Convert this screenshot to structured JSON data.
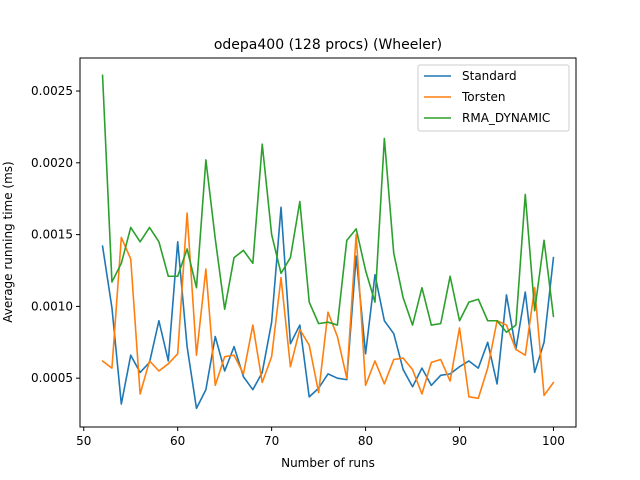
{
  "chart_data": {
    "type": "line",
    "title": "odepa400 (128 procs) (Wheeler)",
    "xlabel": "Number of runs",
    "ylabel": "Average running time (ms)",
    "xlim": [
      49.6,
      102.4
    ],
    "ylim": [
      0.00016,
      0.00273
    ],
    "xticks": [
      50,
      60,
      70,
      80,
      90,
      100
    ],
    "xtick_labels": [
      "50",
      "60",
      "70",
      "80",
      "90",
      "100"
    ],
    "yticks": [
      0.0005,
      0.001,
      0.0015,
      0.002,
      0.0025
    ],
    "ytick_labels": [
      "0.0005",
      "0.0010",
      "0.0015",
      "0.0020",
      "0.0025"
    ],
    "grid": false,
    "legend_position": "top-right",
    "x": [
      52,
      53,
      54,
      55,
      56,
      57,
      58,
      59,
      60,
      61,
      62,
      63,
      64,
      65,
      66,
      67,
      68,
      69,
      70,
      71,
      72,
      73,
      74,
      75,
      76,
      77,
      78,
      79,
      80,
      81,
      82,
      83,
      84,
      85,
      86,
      87,
      88,
      89,
      90,
      91,
      92,
      93,
      94,
      95,
      96,
      97,
      98,
      99,
      100
    ],
    "series": [
      {
        "name": "Standard",
        "color": "#1f77b4",
        "values": [
          0.00142,
          0.00099,
          0.00032,
          0.00066,
          0.00054,
          0.00061,
          0.0009,
          0.00062,
          0.00145,
          0.00072,
          0.00029,
          0.00042,
          0.00079,
          0.00055,
          0.00072,
          0.00051,
          0.00042,
          0.00054,
          0.00089,
          0.00169,
          0.00074,
          0.00087,
          0.00037,
          0.00043,
          0.00053,
          0.0005,
          0.00049,
          0.00135,
          0.00067,
          0.00122,
          0.0009,
          0.00081,
          0.00056,
          0.00044,
          0.00057,
          0.00045,
          0.00052,
          0.00053,
          0.00058,
          0.00062,
          0.00057,
          0.00075,
          0.00046,
          0.00108,
          0.0007,
          0.0011,
          0.00054,
          0.00075,
          0.00134
        ]
      },
      {
        "name": "Torsten",
        "color": "#ff7f0e",
        "values": [
          0.00062,
          0.00057,
          0.00148,
          0.00133,
          0.00039,
          0.00062,
          0.00055,
          0.0006,
          0.00067,
          0.00165,
          0.00066,
          0.00126,
          0.00045,
          0.00065,
          0.00066,
          0.00053,
          0.00087,
          0.00047,
          0.00065,
          0.0012,
          0.00058,
          0.00084,
          0.00073,
          0.0004,
          0.00096,
          0.00079,
          0.0005,
          0.0015,
          0.00045,
          0.00062,
          0.00046,
          0.00063,
          0.00064,
          0.00056,
          0.00039,
          0.00061,
          0.00063,
          0.00048,
          0.00085,
          0.00037,
          0.00036,
          0.00057,
          0.0009,
          0.00087,
          0.0007,
          0.00066,
          0.00113,
          0.00038,
          0.00047
        ]
      },
      {
        "name": "RMA_DYNAMIC",
        "color": "#2ca02c",
        "values": [
          0.00261,
          0.00117,
          0.0013,
          0.00155,
          0.00145,
          0.00155,
          0.00145,
          0.00121,
          0.00121,
          0.0014,
          0.00113,
          0.00202,
          0.00147,
          0.00098,
          0.00134,
          0.00139,
          0.0013,
          0.00213,
          0.0015,
          0.00123,
          0.00134,
          0.00173,
          0.00103,
          0.00088,
          0.00089,
          0.00087,
          0.00146,
          0.00154,
          0.00125,
          0.00103,
          0.00217,
          0.00137,
          0.00106,
          0.00087,
          0.00113,
          0.00087,
          0.00088,
          0.00121,
          0.0009,
          0.00103,
          0.00105,
          0.0009,
          0.0009,
          0.00082,
          0.00087,
          0.00178,
          0.00097,
          0.00146,
          0.00093
        ]
      }
    ]
  }
}
